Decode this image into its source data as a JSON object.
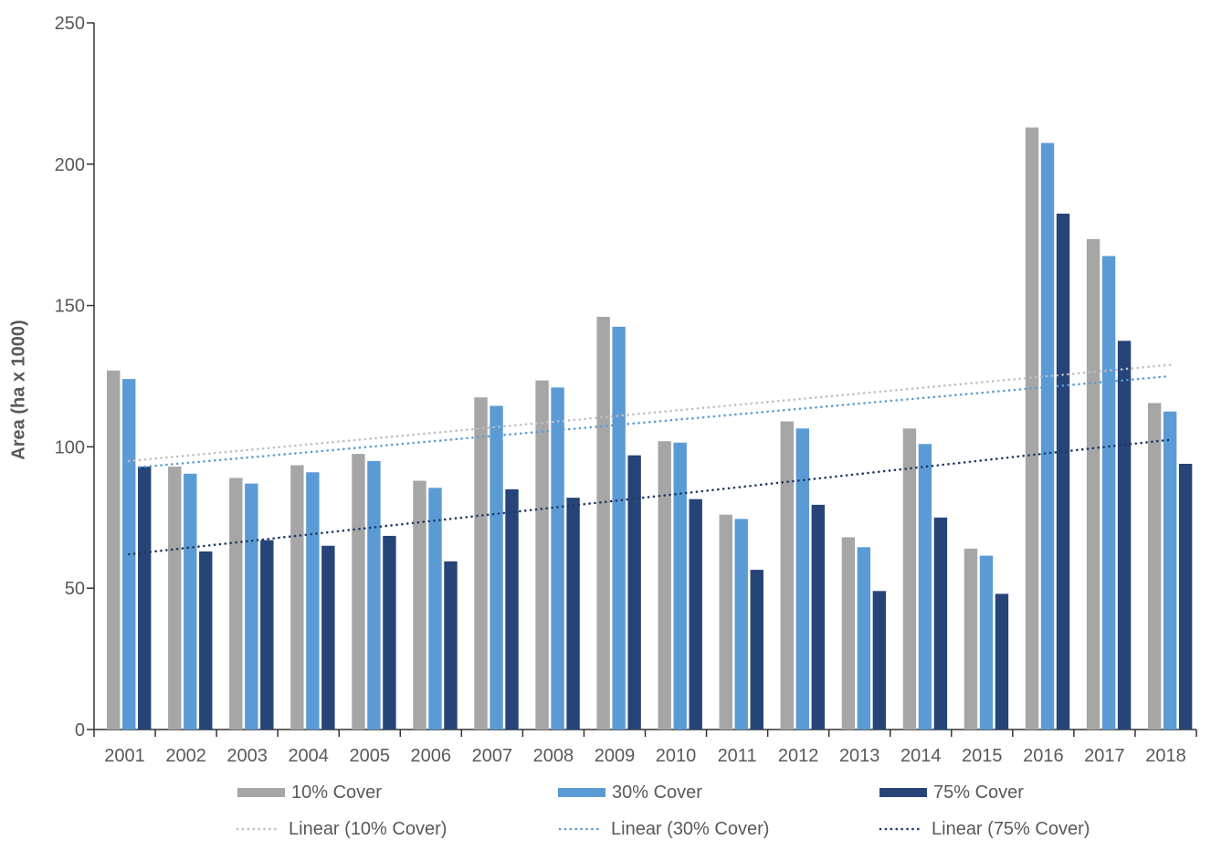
{
  "chart_data": {
    "type": "bar",
    "title": "",
    "xlabel": "",
    "ylabel": "Area (ha x 1000)",
    "ylim": [
      0,
      250
    ],
    "yticks": [
      0,
      50,
      100,
      150,
      200,
      250
    ],
    "grid": false,
    "legend_position": "bottom",
    "categories": [
      "2001",
      "2002",
      "2003",
      "2004",
      "2005",
      "2006",
      "2007",
      "2008",
      "2009",
      "2010",
      "2011",
      "2012",
      "2013",
      "2014",
      "2015",
      "2016",
      "2017",
      "2018"
    ],
    "series": [
      {
        "name": "10% Cover",
        "color": "#A6A6A6",
        "values": [
          127,
          93,
          89,
          93.5,
          97.5,
          88,
          117.5,
          123.5,
          146,
          102,
          76,
          109,
          68,
          106.5,
          64,
          213,
          173.5,
          115.5
        ]
      },
      {
        "name": "30% Cover",
        "color": "#5B9BD5",
        "values": [
          124,
          90.5,
          87,
          91,
          95,
          85.5,
          114.5,
          121,
          142.5,
          101.5,
          74.5,
          106.5,
          64.5,
          101,
          61.5,
          207.5,
          167.5,
          112.5
        ]
      },
      {
        "name": "75% Cover",
        "color": "#264478",
        "values": [
          93,
          63,
          67,
          65,
          68.5,
          59.5,
          85,
          82,
          97,
          81.5,
          56.5,
          79.5,
          49,
          75,
          48,
          182.5,
          137.5,
          94
        ]
      }
    ],
    "trendlines": [
      {
        "name": "Linear (10% Cover)",
        "color": "#BFBFBF",
        "start_value": 95,
        "end_value": 129
      },
      {
        "name": "Linear (30% Cover)",
        "color": "#5B9BD5",
        "start_value": 92.5,
        "end_value": 125
      },
      {
        "name": "Linear (75% Cover)",
        "color": "#1F3864",
        "start_value": 62,
        "end_value": 102.5
      }
    ],
    "axis_color": "#333333",
    "tick_label_color": "#595959"
  }
}
